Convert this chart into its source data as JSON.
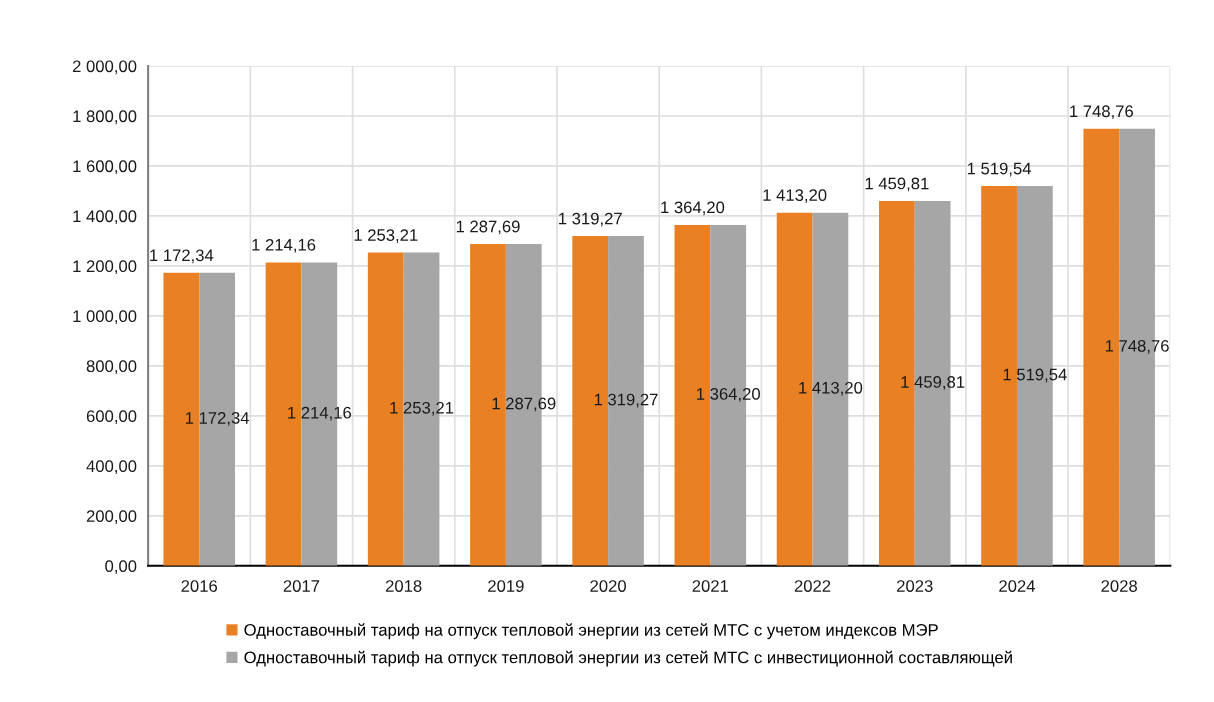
{
  "chart_data": {
    "type": "bar",
    "categories": [
      "2016",
      "2017",
      "2018",
      "2019",
      "2020",
      "2021",
      "2022",
      "2023",
      "2024",
      "2028"
    ],
    "series": [
      {
        "name": "Одноставочный тариф на отпуск тепловой энергии из сетей МТС с учетом индексов МЭР",
        "color": "#e98024",
        "values": [
          1172.34,
          1214.16,
          1253.21,
          1287.69,
          1319.27,
          1364.2,
          1413.2,
          1459.81,
          1519.54,
          1748.76
        ],
        "value_labels": [
          "1 172,34",
          "1 214,16",
          "1 253,21",
          "1 287,69",
          "1 319,27",
          "1 364,20",
          "1 413,20",
          "1 459,81",
          "1 519,54",
          "1 748,76"
        ]
      },
      {
        "name": "Одноставочный тариф на отпуск тепловой энергии из сетей МТС с инвестиционной составляющей",
        "color": "#a6a6a6",
        "values": [
          1172.34,
          1214.16,
          1253.21,
          1287.69,
          1319.27,
          1364.2,
          1413.2,
          1459.81,
          1519.54,
          1748.76
        ],
        "value_labels": [
          "1 172,34",
          "1 214,16",
          "1 253,21",
          "1 287,69",
          "1 319,27",
          "1 364,20",
          "1 413,20",
          "1 459,81",
          "1 519,54",
          "1 748,76"
        ]
      }
    ],
    "ylim": [
      0,
      2000
    ],
    "yticks": [
      {
        "value": 0,
        "label": "0,00"
      },
      {
        "value": 200,
        "label": "200,00"
      },
      {
        "value": 400,
        "label": "400,00"
      },
      {
        "value": 600,
        "label": "600,00"
      },
      {
        "value": 800,
        "label": "800,00"
      },
      {
        "value": 1000,
        "label": "1 000,00"
      },
      {
        "value": 1200,
        "label": "1 200,00"
      },
      {
        "value": 1400,
        "label": "1 400,00"
      },
      {
        "value": 1600,
        "label": "1 600,00"
      },
      {
        "value": 1800,
        "label": "1 800,00"
      },
      {
        "value": 2000,
        "label": "2 000,00"
      }
    ],
    "grid": true,
    "legend": "bottom"
  }
}
